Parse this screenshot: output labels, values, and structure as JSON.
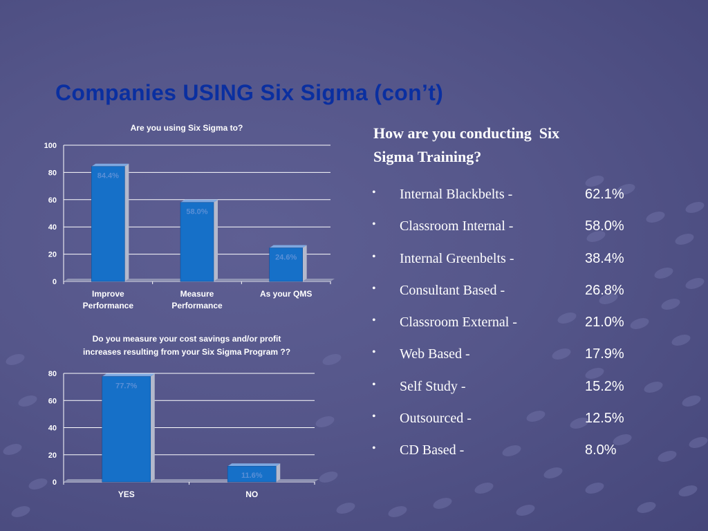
{
  "slide": {
    "title": "Companies USING Six Sigma (con’t)"
  },
  "training": {
    "heading": "How are you conducting  Six\nSigma Training?",
    "items": [
      {
        "label": "Internal Blackbelts -",
        "value": "62.1%"
      },
      {
        "label": "Classroom Internal -",
        "value": "58.0%"
      },
      {
        "label": "Internal Greenbelts -",
        "value": "38.4%"
      },
      {
        "label": "Consultant Based -",
        "value": "26.8%"
      },
      {
        "label": "Classroom External -",
        "value": "21.0%"
      },
      {
        "label": "Web Based -",
        "value": "17.9%"
      },
      {
        "label": "Self Study -",
        "value": "15.2%"
      },
      {
        "label": "Outsourced -",
        "value": "12.5%"
      },
      {
        "label": "CD Based -",
        "value": "8.0%"
      }
    ]
  },
  "chart_data": [
    {
      "type": "bar",
      "title": "Are you using Six Sigma to?",
      "categories": [
        "Improve\nPerformance",
        "Measure\nPerformance",
        "As your QMS"
      ],
      "values": [
        84.4,
        58.0,
        24.6
      ],
      "data_labels": [
        "84.4%",
        "58.0%",
        "24.6%"
      ],
      "ylim": [
        0,
        100
      ],
      "yticks": [
        0,
        20,
        40,
        60,
        80,
        100
      ],
      "grid": true,
      "legend": "none"
    },
    {
      "type": "bar",
      "title": "Do you measure your cost savings and/or profit\nincreases resulting from your Six Sigma Program ??",
      "categories": [
        "YES",
        "NO"
      ],
      "values": [
        77.7,
        11.6
      ],
      "data_labels": [
        "77.7%",
        "11.6%"
      ],
      "ylim": [
        0,
        80
      ],
      "yticks": [
        0,
        20,
        40,
        60,
        80
      ],
      "grid": true,
      "legend": "none"
    }
  ],
  "colors": {
    "bar_front": "#1670c8",
    "bar_side": "#b4b9cc",
    "data_label": "#5a8fd6",
    "title": "#0a2fa0"
  }
}
